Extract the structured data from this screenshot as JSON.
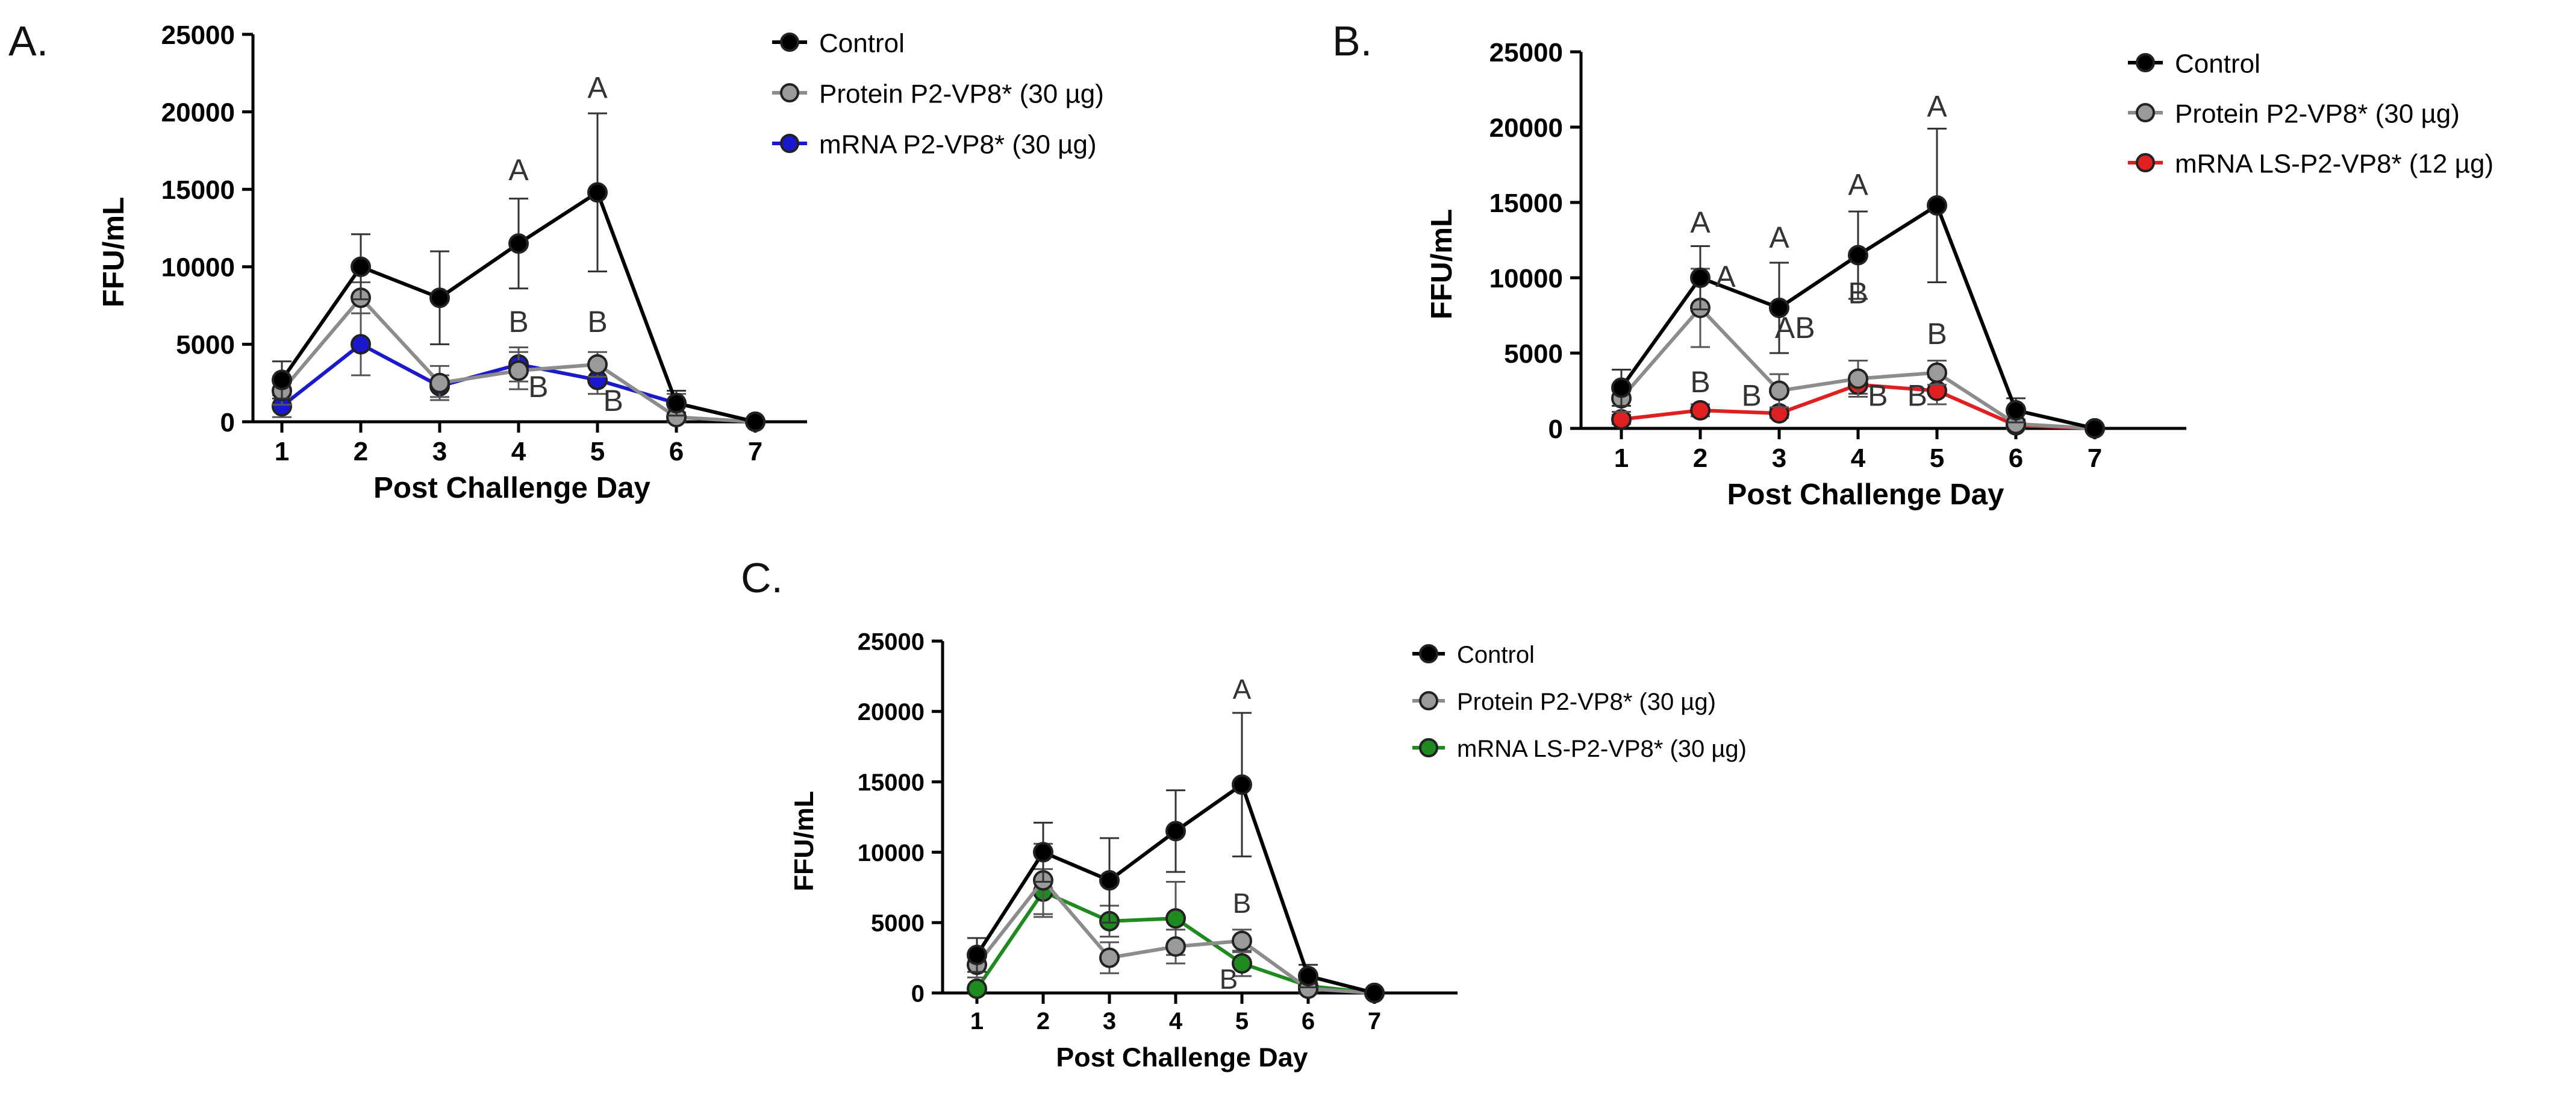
{
  "chart_data": [
    {
      "panel_label": "A.",
      "type": "line",
      "xlabel": "Post Challenge Day",
      "ylabel": "FFU/mL",
      "ylim": [
        0,
        25000
      ],
      "yticks": [
        "0",
        "5000",
        "10000",
        "15000",
        "20000",
        "25000"
      ],
      "x": [
        1,
        2,
        3,
        4,
        5,
        6,
        7
      ],
      "legend_position": "top-right",
      "series": [
        {
          "name": "Control",
          "color": "#000000",
          "marker_fill": "#000000",
          "values": [
            2700,
            10000,
            8000,
            11500,
            14800,
            1200,
            0
          ],
          "errors": [
            1200,
            2100,
            3000,
            2900,
            5100,
            800,
            0
          ]
        },
        {
          "name": "Protein P2-VP8* (30 µg)",
          "color": "#8c8c8c",
          "marker_fill": "#9a9a9a",
          "values": [
            2000,
            8000,
            2500,
            3300,
            3700,
            300,
            0
          ],
          "errors": [
            900,
            1000,
            1100,
            1200,
            800,
            300,
            0
          ]
        },
        {
          "name": "mRNA P2-VP8* (30 µg)",
          "color": "#1a1acc",
          "marker_fill": "#1a1acc",
          "values": [
            1000,
            5000,
            2300,
            3700,
            2700,
            1200,
            0
          ],
          "errors": [
            700,
            2000,
            700,
            1100,
            900,
            600,
            0
          ]
        }
      ],
      "annotations": [
        {
          "text": "A",
          "x": 4,
          "y": 15600
        },
        {
          "text": "A",
          "x": 5,
          "y": 20900
        },
        {
          "text": "B",
          "x": 4,
          "y": 5800
        },
        {
          "text": "B",
          "x": 5,
          "y": 5800
        },
        {
          "text": "B",
          "x": 4.25,
          "y": 1600
        },
        {
          "text": "B",
          "x": 5.2,
          "y": 700
        }
      ]
    },
    {
      "panel_label": "B.",
      "type": "line",
      "xlabel": "Post Challenge Day",
      "ylabel": "FFU/mL",
      "ylim": [
        0,
        25000
      ],
      "yticks": [
        "0",
        "5000",
        "10000",
        "15000",
        "20000",
        "25000"
      ],
      "x": [
        1,
        2,
        3,
        4,
        5,
        6,
        7
      ],
      "legend_position": "top-right",
      "series": [
        {
          "name": "Control",
          "color": "#000000",
          "marker_fill": "#000000",
          "values": [
            2700,
            10000,
            8000,
            11500,
            14800,
            1200,
            0
          ],
          "errors": [
            1200,
            2100,
            3000,
            2900,
            5100,
            800,
            0
          ]
        },
        {
          "name": "Protein P2-VP8* (30 µg)",
          "color": "#8c8c8c",
          "marker_fill": "#9a9a9a",
          "values": [
            2000,
            8000,
            2500,
            3300,
            3700,
            300,
            0
          ],
          "errors": [
            900,
            2600,
            1100,
            1200,
            800,
            300,
            0
          ]
        },
        {
          "name": "mRNA LS-P2-VP8* (12 µg)",
          "color": "#e02020",
          "marker_fill": "#e02020",
          "values": [
            600,
            1200,
            1000,
            2900,
            2500,
            200,
            0
          ],
          "errors": [
            300,
            400,
            300,
            600,
            900,
            200,
            0
          ]
        }
      ],
      "annotations": [
        {
          "text": "A",
          "x": 2,
          "y": 13000
        },
        {
          "text": "A",
          "x": 3,
          "y": 12000
        },
        {
          "text": "A",
          "x": 4,
          "y": 15500
        },
        {
          "text": "A",
          "x": 5,
          "y": 20700
        },
        {
          "text": "A",
          "x": 2.32,
          "y": 9400
        },
        {
          "text": "AB",
          "x": 3.2,
          "y": 6000
        },
        {
          "text": "B",
          "x": 2,
          "y": 2400
        },
        {
          "text": "B",
          "x": 2.65,
          "y": 1500
        },
        {
          "text": "B",
          "x": 4,
          "y": 8300
        },
        {
          "text": "B",
          "x": 5,
          "y": 5600
        },
        {
          "text": "B",
          "x": 4.25,
          "y": 1500
        },
        {
          "text": "B",
          "x": 4.75,
          "y": 1500
        }
      ]
    },
    {
      "panel_label": "C.",
      "type": "line",
      "xlabel": "Post Challenge Day",
      "ylabel": "FFU/mL",
      "ylim": [
        0,
        25000
      ],
      "yticks": [
        "0",
        "5000",
        "10000",
        "15000",
        "20000",
        "25000"
      ],
      "x": [
        1,
        2,
        3,
        4,
        5,
        6,
        7
      ],
      "legend_position": "top-right",
      "series": [
        {
          "name": "Control",
          "color": "#000000",
          "marker_fill": "#000000",
          "values": [
            2700,
            10000,
            8000,
            11500,
            14800,
            1200,
            0
          ],
          "errors": [
            1200,
            2100,
            3000,
            2900,
            5100,
            800,
            0
          ]
        },
        {
          "name": "Protein P2-VP8* (30 µg)",
          "color": "#8c8c8c",
          "marker_fill": "#9a9a9a",
          "values": [
            2000,
            8000,
            2500,
            3300,
            3700,
            300,
            0
          ],
          "errors": [
            900,
            2600,
            1100,
            1200,
            800,
            300,
            0
          ]
        },
        {
          "name": "mRNA LS-P2-VP8* (30 µg)",
          "color": "#1f8a1f",
          "marker_fill": "#1f8a1f",
          "values": [
            300,
            7200,
            5100,
            5300,
            2100,
            500,
            0
          ],
          "errors": [
            200,
            1600,
            1100,
            2600,
            900,
            400,
            0
          ]
        }
      ],
      "annotations": [
        {
          "text": "A",
          "x": 5,
          "y": 20900
        },
        {
          "text": "B",
          "x": 5,
          "y": 5700
        },
        {
          "text": "B",
          "x": 4.8,
          "y": 300
        }
      ]
    }
  ]
}
